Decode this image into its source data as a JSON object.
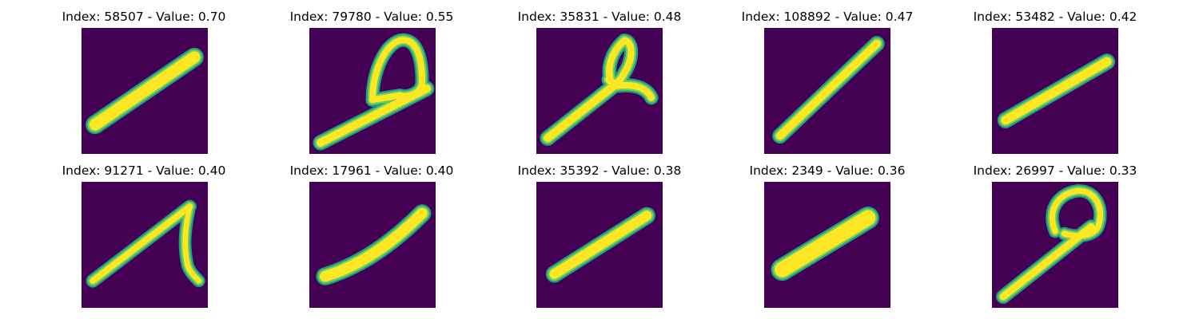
{
  "colors": {
    "background": "#440154",
    "stroke_edge": "#1f9e89",
    "stroke_mid": "#6ece58",
    "stroke_core": "#fde725"
  },
  "panels": [
    {
      "title": "Index: 58507 - Value: 0.70"
    },
    {
      "title": "Index: 79780 - Value: 0.55"
    },
    {
      "title": "Index: 35831 - Value: 0.48"
    },
    {
      "title": "Index: 108892 - Value: 0.47"
    },
    {
      "title": "Index: 53482 - Value: 0.42"
    },
    {
      "title": "Index: 91271 - Value: 0.40"
    },
    {
      "title": "Index: 17961 - Value: 0.40"
    },
    {
      "title": "Index: 35392 - Value: 0.38"
    },
    {
      "title": "Index: 2349 - Value: 0.36"
    },
    {
      "title": "Index: 26997 - Value: 0.33"
    }
  ]
}
